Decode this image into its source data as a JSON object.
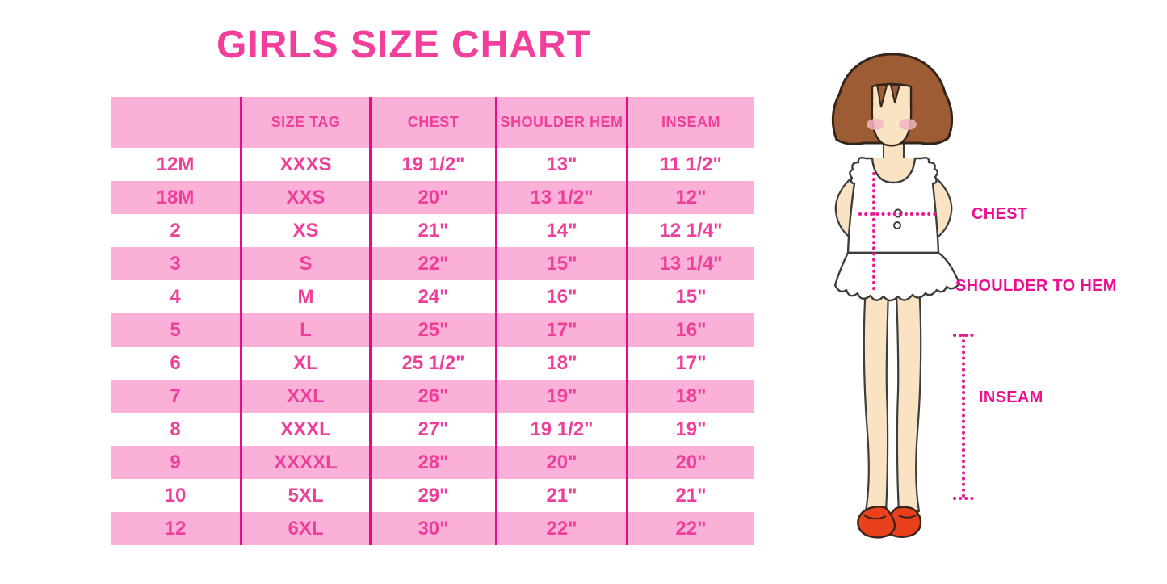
{
  "page": {
    "title": "GIRLS SIZE CHART"
  },
  "colors": {
    "row_pink": "#fbb1d7",
    "grid_line": "#e9098b",
    "table_text": "#ee3f9b",
    "title_text": "#f23f9b",
    "label_text": "#ed0f90",
    "hair_brown": "#9d5c33",
    "outline_dark": "#34251b",
    "skin": "#fae3c2",
    "blush": "#f2b6c3",
    "garment_white": "#ffffff",
    "shoe_red": "#e8411c",
    "dotted_line": "#ec1690"
  },
  "chart_data": {
    "type": "table",
    "title": "GIRLS SIZE CHART",
    "columns": [
      "",
      "SIZE TAG",
      "CHEST",
      "SHOULDER HEM",
      "INSEAM"
    ],
    "rows": [
      [
        "12M",
        "XXXS",
        "19 1/2\"",
        "13\"",
        "11 1/2\""
      ],
      [
        "18M",
        "XXS",
        "20\"",
        "13 1/2\"",
        "12\""
      ],
      [
        "2",
        "XS",
        "21\"",
        "14\"",
        "12 1/4\""
      ],
      [
        "3",
        "S",
        "22\"",
        "15\"",
        "13 1/4\""
      ],
      [
        "4",
        "M",
        "24\"",
        "16\"",
        "15\""
      ],
      [
        "5",
        "L",
        "25\"",
        "17\"",
        "16\""
      ],
      [
        "6",
        "XL",
        "25 1/2\"",
        "18\"",
        "17\""
      ],
      [
        "7",
        "XXL",
        "26\"",
        "19\"",
        "18\""
      ],
      [
        "8",
        "XXXL",
        "27\"",
        "19 1/2\"",
        "19\""
      ],
      [
        "9",
        "XXXXL",
        "28\"",
        "20\"",
        "20\""
      ],
      [
        "10",
        "5XL",
        "29\"",
        "21\"",
        "21\""
      ],
      [
        "12",
        "6XL",
        "30\"",
        "22\"",
        "22\""
      ]
    ],
    "row_striping": [
      "white",
      "pink",
      "white",
      "pink",
      "white",
      "pink",
      "white",
      "pink",
      "white",
      "pink",
      "white",
      "pink"
    ],
    "legend_position": "none",
    "grid": "vertical-magenta-lines"
  },
  "figure": {
    "labels": {
      "chest": "CHEST",
      "shoulder_to_hem": "SHOULDER TO HEM",
      "inseam": "INSEAM"
    }
  }
}
